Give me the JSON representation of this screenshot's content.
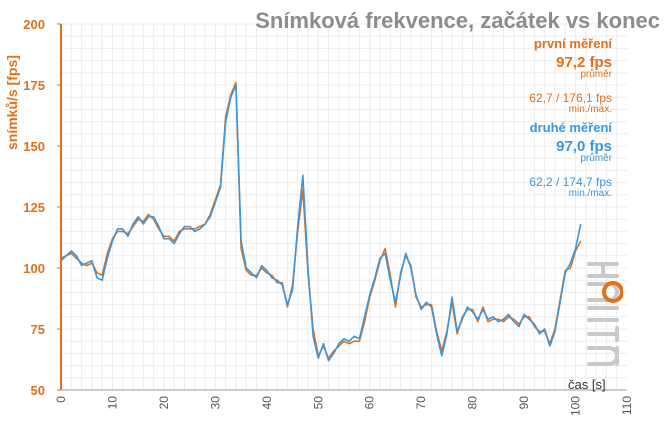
{
  "chart_data": {
    "type": "line",
    "title": "Snímková frekvence, začátek vs konec",
    "xlabel": "čas [s]",
    "ylabel": "snímků/s [fps]",
    "xlim": [
      0,
      110
    ],
    "ylim": [
      50,
      200
    ],
    "xticks": [
      0,
      10,
      20,
      30,
      40,
      50,
      60,
      70,
      80,
      90,
      100,
      110
    ],
    "yticks": [
      50,
      75,
      100,
      125,
      150,
      175,
      200
    ],
    "grid": true,
    "series": [
      {
        "name": "první měření",
        "color": "#e0701c",
        "avg_value": "97,2 fps",
        "avg_label": "průměr",
        "minmax_value": "62,7 / 176,1 fps",
        "minmax_label": "min./max.",
        "values": [
          104,
          105,
          106,
          104,
          102,
          101,
          102,
          98,
          97,
          106,
          112,
          115,
          115,
          114,
          117,
          120,
          119,
          122,
          120,
          116,
          113,
          113,
          111,
          115,
          116,
          116,
          116,
          117,
          118,
          122,
          128,
          134,
          162,
          171,
          176,
          108,
          99,
          97,
          97,
          100,
          98,
          97,
          94,
          94,
          84,
          93,
          115,
          132,
          98,
          75,
          64,
          68,
          63,
          66,
          68,
          70,
          69,
          70,
          70,
          78,
          88,
          95,
          103,
          108,
          97,
          84,
          98,
          105,
          101,
          88,
          84,
          85,
          85,
          74,
          66,
          74,
          86,
          73,
          80,
          83,
          83,
          78,
          84,
          78,
          79,
          79,
          78,
          80,
          79,
          77,
          80,
          80,
          76,
          74,
          74,
          69,
          75,
          87,
          99,
          100,
          107,
          111
        ]
      },
      {
        "name": "druhé měření",
        "color": "#3a96dd",
        "avg_value": "97,0 fps",
        "avg_label": "průměr",
        "minmax_value": "62,2 / 174,7 fps",
        "minmax_label": "min./max.",
        "values": [
          103,
          105,
          107,
          105,
          101,
          102,
          103,
          96,
          95,
          104,
          111,
          116,
          116,
          113,
          118,
          121,
          118,
          121,
          121,
          117,
          112,
          112,
          110,
          114,
          117,
          117,
          115,
          116,
          118,
          121,
          127,
          133,
          160,
          170,
          175,
          111,
          100,
          98,
          96,
          101,
          99,
          96,
          95,
          93,
          85,
          91,
          117,
          138,
          100,
          72,
          63,
          69,
          62,
          65,
          69,
          71,
          70,
          72,
          71,
          80,
          89,
          96,
          104,
          106,
          95,
          86,
          97,
          106,
          100,
          89,
          83,
          86,
          84,
          73,
          64,
          73,
          88,
          74,
          79,
          84,
          82,
          79,
          83,
          79,
          80,
          78,
          79,
          81,
          78,
          76,
          81,
          79,
          77,
          73,
          75,
          68,
          74,
          86,
          98,
          102,
          108,
          118
        ]
      }
    ]
  }
}
